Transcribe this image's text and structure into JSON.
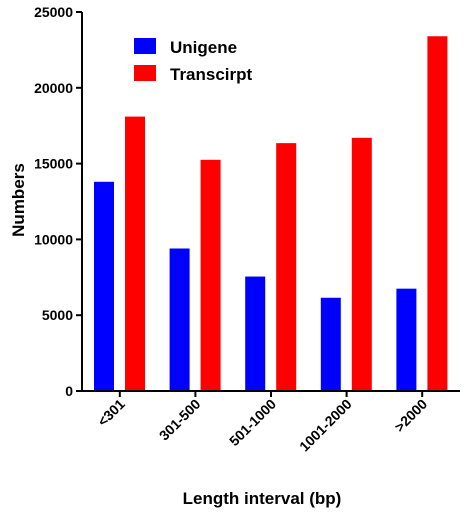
{
  "chart_data": {
    "type": "bar",
    "categories": [
      "<301",
      "301-500",
      "501-1000",
      "1001-2000",
      ">2000"
    ],
    "series": [
      {
        "name": "Unigene",
        "color": "#0000ff",
        "values": [
          13800,
          9400,
          7550,
          6150,
          6750
        ]
      },
      {
        "name": "Transcirpt",
        "color": "#ff0000",
        "values": [
          18100,
          15250,
          16350,
          16700,
          23400
        ]
      }
    ],
    "title": "",
    "xlabel": "Length interval (bp)",
    "ylabel": "Numbers",
    "ylim": [
      0,
      25000
    ],
    "yticks": [
      0,
      5000,
      10000,
      15000,
      20000,
      25000
    ],
    "grid": false,
    "legend_position": "top-left"
  }
}
